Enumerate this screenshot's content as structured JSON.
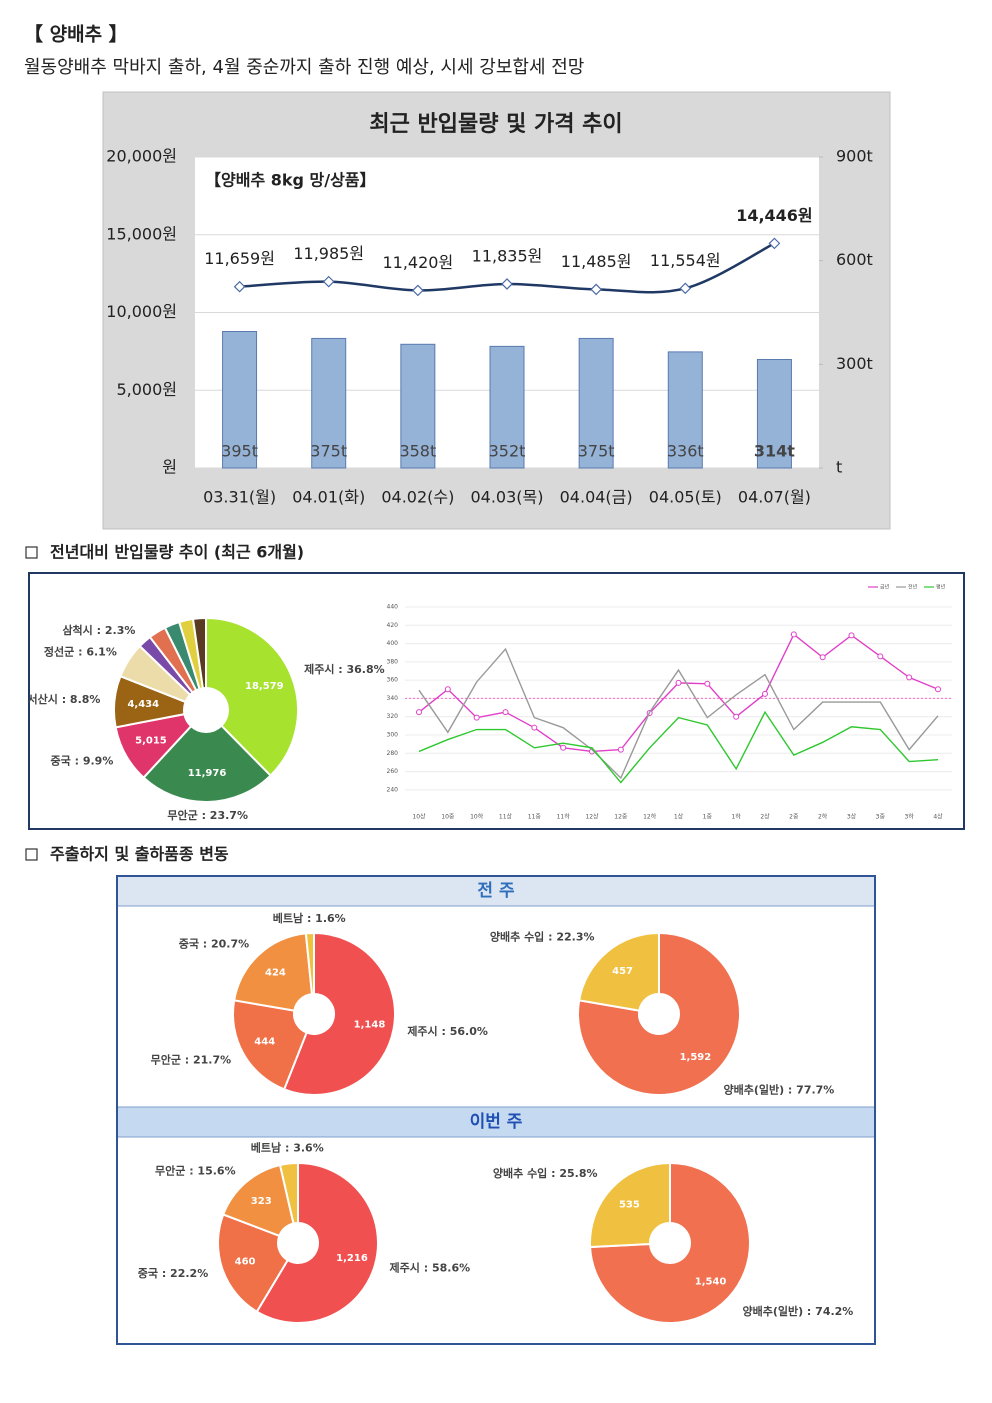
{
  "header": {
    "title": "【 양배추 】",
    "subtitle": "월동양배추 막바지 출하, 4월 중순까지 출하 진행 예상, 시세 강보합세 전망"
  },
  "sections": [
    "전년대비 반입물량 추이 (최근 6개월)",
    "주출하지 및 출하품종 변동"
  ],
  "panels": [
    "전 주",
    "이번 주"
  ],
  "chart_data": [
    {
      "type": "combo",
      "title": "최근 반입물량 및 가격 추이",
      "subtitle": "【양배추 8kg 망/상품】",
      "categories": [
        "03.31(월)",
        "04.01(화)",
        "04.02(수)",
        "04.03(목)",
        "04.04(금)",
        "04.05(토)",
        "04.07(월)"
      ],
      "series": [
        {
          "type": "bar",
          "axis": "y2",
          "color": "#95b3d7",
          "values": [
            395,
            375,
            358,
            352,
            375,
            336,
            314
          ],
          "value_labels": [
            "395t",
            "375t",
            "358t",
            "352t",
            "375t",
            "336t",
            "314t"
          ]
        },
        {
          "type": "line",
          "color": "#1f3864",
          "values": [
            11659,
            11985,
            11420,
            11835,
            11485,
            11554,
            14446
          ],
          "value_labels": [
            "11,659원",
            "11,985원",
            "11,420원",
            "11,835원",
            "11,485원",
            "11,554원",
            "14,446원"
          ]
        }
      ],
      "ylim": [
        0,
        20000
      ],
      "yticks": [
        {
          "value": 0,
          "label": "원"
        },
        {
          "value": 5000,
          "label": "5,000원"
        },
        {
          "value": 10000,
          "label": "10,000원"
        },
        {
          "value": 15000,
          "label": "15,000원"
        },
        {
          "value": 20000,
          "label": "20,000원"
        }
      ],
      "y2lim": [
        0,
        900
      ],
      "y2ticks": [
        {
          "value": 0,
          "label": "t"
        },
        {
          "value": 300,
          "label": "300t"
        },
        {
          "value": 600,
          "label": "600t"
        },
        {
          "value": 900,
          "label": "900t"
        }
      ],
      "grid": true,
      "emphasis_index": 6
    },
    {
      "type": "pie",
      "donut": true,
      "labels": [
        "제주시 : 36.8%",
        "무안군 : 23.7%",
        "중국 : 9.9%",
        "서산시 : 8.8%",
        "정선군 : 6.1%",
        "삼척시 : 2.3%",
        null,
        null,
        null,
        null
      ],
      "values": [
        36.8,
        23.7,
        9.9,
        8.8,
        6.1,
        2.3,
        3.0,
        2.6,
        2.4,
        2.2
      ],
      "counts": [
        18579,
        11976,
        5015,
        4434,
        null,
        null,
        null,
        null,
        null,
        null
      ],
      "count_labels": [
        "18,579",
        "11,976",
        "5,015",
        "4,434",
        null,
        null,
        null,
        null,
        null,
        null
      ],
      "colors": [
        "#a6e22e",
        "#3a8a50",
        "#e0356a",
        "#9a6414",
        "#ecdcaa",
        "#7a4aa8",
        "#e07050",
        "#3a8a70",
        "#e0d040",
        "#5a3a20"
      ]
    },
    {
      "type": "line",
      "categories": [
        "10상",
        "10중",
        "10하",
        "11상",
        "11중",
        "11하",
        "12상",
        "12중",
        "12하",
        "1상",
        "1중",
        "1하",
        "2상",
        "2중",
        "2하",
        "3상",
        "3중",
        "3하",
        "4상"
      ],
      "series": [
        {
          "name": "금년",
          "color": "#e040c8",
          "markers": true,
          "values": [
            325,
            350,
            319,
            325,
            308,
            286,
            282,
            284,
            324,
            357,
            356,
            320,
            345,
            410,
            385,
            409,
            386,
            363,
            350
          ]
        },
        {
          "name": "전년",
          "color": "#999999",
          "markers": false,
          "values": [
            349,
            303,
            358,
            394,
            319,
            308,
            284,
            253,
            325,
            371,
            319,
            344,
            366,
            306,
            336,
            336,
            336,
            284,
            321
          ]
        },
        {
          "name": "평년",
          "color": "#2ec82e",
          "markers": false,
          "values": [
            282,
            295,
            306,
            306,
            286,
            291,
            286,
            248,
            286,
            319,
            311,
            263,
            325,
            278,
            292,
            309,
            306,
            271,
            273
          ]
        }
      ],
      "reference_line": {
        "value": 340,
        "color": "#ff66cc"
      },
      "ylim": [
        230,
        440
      ],
      "yticks": [
        240,
        260,
        280,
        300,
        320,
        340,
        360,
        380,
        400,
        420,
        440
      ],
      "grid": true,
      "legend": "top-right"
    },
    {
      "type": "pie",
      "donut": true,
      "labels": [
        "제주시 : 56.0%",
        "무안군 : 21.7%",
        "중국 : 20.7%",
        "베트남 : 1.6%"
      ],
      "values": [
        56.0,
        21.7,
        20.7,
        1.6
      ],
      "counts": [
        1148,
        444,
        424,
        null
      ],
      "count_labels": [
        "1,148",
        "444",
        "424",
        null
      ],
      "colors": [
        "#f05050",
        "#f07048",
        "#f09040",
        "#f0c040"
      ]
    },
    {
      "type": "pie",
      "donut": true,
      "labels": [
        "양배추(일반) : 77.7%",
        "양배추 수입 : 22.3%"
      ],
      "values": [
        77.7,
        22.3
      ],
      "counts": [
        1592,
        457
      ],
      "count_labels": [
        "1,592",
        "457"
      ],
      "colors": [
        "#f07050",
        "#f0c040"
      ]
    },
    {
      "type": "pie",
      "donut": true,
      "labels": [
        "제주시 : 58.6%",
        "중국 : 22.2%",
        "무안군 : 15.6%",
        "베트남 : 3.6%"
      ],
      "values": [
        58.6,
        22.2,
        15.6,
        3.6
      ],
      "counts": [
        1216,
        460,
        323,
        null
      ],
      "count_labels": [
        "1,216",
        "460",
        "323",
        null
      ],
      "colors": [
        "#f05050",
        "#f07048",
        "#f09040",
        "#f0c040"
      ]
    },
    {
      "type": "pie",
      "donut": true,
      "labels": [
        "양배추(일반) : 74.2%",
        "양배추 수입 : 25.8%"
      ],
      "values": [
        74.2,
        25.8
      ],
      "counts": [
        1540,
        535
      ],
      "count_labels": [
        "1,540",
        "535"
      ],
      "colors": [
        "#f07050",
        "#f0c040"
      ]
    }
  ]
}
